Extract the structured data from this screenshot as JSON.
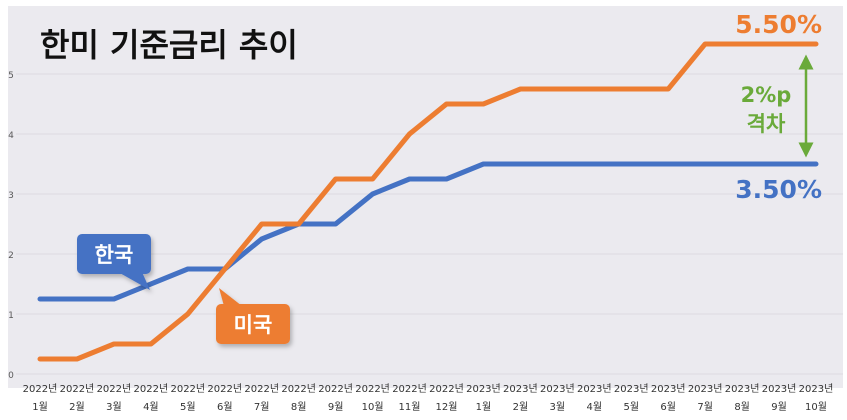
{
  "title": "한미 기준금리 추이",
  "chart_data": {
    "type": "line",
    "title": "한미 기준금리 추이",
    "x_labels": [
      [
        "2022년",
        "1월"
      ],
      [
        "2022년",
        "2월"
      ],
      [
        "2022년",
        "3월"
      ],
      [
        "2022년",
        "4월"
      ],
      [
        "2022년",
        "5월"
      ],
      [
        "2022년",
        "6월"
      ],
      [
        "2022년",
        "7월"
      ],
      [
        "2022년",
        "8월"
      ],
      [
        "2022년",
        "9월"
      ],
      [
        "2022년",
        "10월"
      ],
      [
        "2022년",
        "11월"
      ],
      [
        "2022년",
        "12월"
      ],
      [
        "2023년",
        "1월"
      ],
      [
        "2023년",
        "2월"
      ],
      [
        "2023년",
        "3월"
      ],
      [
        "2023년",
        "4월"
      ],
      [
        "2023년",
        "5월"
      ],
      [
        "2023년",
        "6월"
      ],
      [
        "2023년",
        "7월"
      ],
      [
        "2023년",
        "8월"
      ],
      [
        "2023년",
        "9월"
      ],
      [
        "2023년",
        "10월"
      ]
    ],
    "y_ticks": [
      0,
      1,
      2,
      3,
      4,
      5
    ],
    "ylim": [
      0,
      6
    ],
    "grid": true,
    "series": [
      {
        "name": "한국",
        "color": "#4472C4",
        "points": [
          {
            "x": 0,
            "y": 1.25
          },
          {
            "x": 2,
            "y": 1.25
          },
          {
            "x": 4,
            "y": 1.75
          },
          {
            "x": 5,
            "y": 1.75
          },
          {
            "x": 6,
            "y": 2.25
          },
          {
            "x": 7,
            "y": 2.5
          },
          {
            "x": 8,
            "y": 2.5
          },
          {
            "x": 9,
            "y": 3.0
          },
          {
            "x": 10,
            "y": 3.25
          },
          {
            "x": 11,
            "y": 3.25
          },
          {
            "x": 12,
            "y": 3.5
          },
          {
            "x": 21,
            "y": 3.5
          }
        ]
      },
      {
        "name": "미국",
        "color": "#ED7D31",
        "points": [
          {
            "x": 0,
            "y": 0.25
          },
          {
            "x": 1,
            "y": 0.25
          },
          {
            "x": 2,
            "y": 0.5
          },
          {
            "x": 3,
            "y": 0.5
          },
          {
            "x": 4,
            "y": 1.0
          },
          {
            "x": 5,
            "y": 1.75
          },
          {
            "x": 6,
            "y": 2.5
          },
          {
            "x": 7,
            "y": 2.5
          },
          {
            "x": 8,
            "y": 3.25
          },
          {
            "x": 9,
            "y": 3.25
          },
          {
            "x": 10,
            "y": 4.0
          },
          {
            "x": 11,
            "y": 4.5
          },
          {
            "x": 12,
            "y": 4.5
          },
          {
            "x": 13,
            "y": 4.75
          },
          {
            "x": 17,
            "y": 4.75
          },
          {
            "x": 18,
            "y": 5.5
          },
          {
            "x": 21,
            "y": 5.5
          }
        ]
      }
    ],
    "annotations": {
      "us_value": "5.50%",
      "kr_value": "3.50%",
      "gap_line1": "2%p",
      "gap_line2": "격차",
      "gap_color": "#6AAA3A"
    }
  }
}
